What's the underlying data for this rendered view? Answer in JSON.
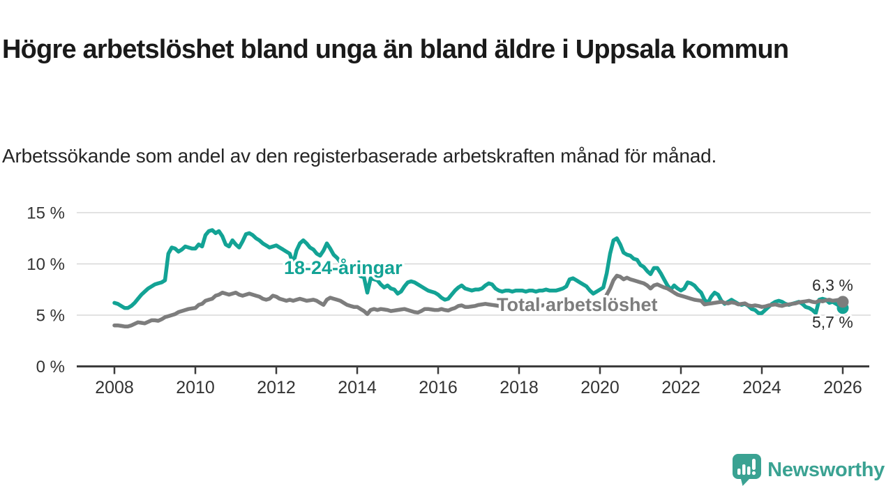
{
  "header": {
    "title": "Högre arbetslöshet bland unga än bland äldre i Uppsala kommun",
    "subtitle": "Arbetssökande som andel av den registerbaserade arbetskraften månad för månad."
  },
  "chart_data": {
    "type": "line",
    "title": "Högre arbetslöshet bland unga än bland äldre i Uppsala kommun",
    "subtitle": "Arbetssökande som andel av den registerbaserade arbetskraften månad för månad.",
    "grid": "horizontal",
    "legend_position": "inline-labels",
    "x_start_year": 2008,
    "x_step_months": 1,
    "x_tick_years": [
      2008,
      2010,
      2012,
      2014,
      2016,
      2018,
      2020,
      2022,
      2024,
      2026
    ],
    "x_tick_labels": [
      "2008",
      "2010",
      "2012",
      "2014",
      "2016",
      "2018",
      "2020",
      "2022",
      "2024",
      "2026"
    ],
    "y_ticks": [
      0,
      5,
      10,
      15
    ],
    "y_tick_labels": [
      "0 %",
      "5 %",
      "10 %",
      "15 %"
    ],
    "ylim": [
      0,
      16.3
    ],
    "xlim": [
      2007.05,
      2026.65
    ],
    "axis_color": "#3c3c3c",
    "grid_color": "#d8d8d8",
    "series": [
      {
        "name": "18-24-åringar",
        "color": "#13a395",
        "end_label": "5,7 %",
        "end_value": 5.7,
        "values": [
          6.2,
          6.1,
          5.9,
          5.7,
          5.7,
          5.9,
          6.2,
          6.6,
          7.0,
          7.3,
          7.6,
          7.8,
          8.0,
          8.1,
          8.2,
          8.4,
          11.0,
          11.6,
          11.5,
          11.2,
          11.4,
          11.7,
          11.6,
          11.5,
          11.5,
          11.9,
          11.7,
          12.8,
          13.2,
          13.3,
          13.0,
          13.2,
          12.7,
          11.9,
          11.7,
          12.3,
          11.9,
          11.6,
          12.2,
          12.9,
          13.0,
          12.8,
          12.5,
          12.3,
          12.0,
          11.8,
          11.6,
          11.7,
          11.8,
          11.6,
          11.4,
          11.2,
          11.0,
          10.0,
          11.3,
          12.0,
          12.3,
          12.0,
          11.6,
          11.4,
          11.0,
          10.8,
          11.3,
          12.0,
          11.5,
          10.9,
          10.6,
          10.2,
          9.9,
          9.6,
          9.8,
          9.5,
          9.2,
          8.8,
          8.7,
          7.2,
          8.6,
          8.5,
          8.4,
          8.0,
          7.7,
          7.9,
          7.6,
          7.5,
          7.1,
          7.3,
          7.8,
          8.2,
          8.3,
          8.2,
          8.0,
          7.8,
          7.6,
          7.4,
          7.3,
          7.2,
          7.0,
          6.7,
          6.5,
          6.6,
          7.0,
          7.4,
          7.7,
          7.9,
          7.6,
          7.5,
          7.4,
          7.5,
          7.5,
          7.6,
          7.9,
          8.1,
          8.0,
          7.6,
          7.4,
          7.3,
          7.4,
          7.4,
          7.3,
          7.4,
          7.4,
          7.4,
          7.3,
          7.4,
          7.4,
          7.3,
          7.4,
          7.4,
          7.5,
          7.4,
          7.4,
          7.4,
          7.5,
          7.6,
          7.8,
          8.5,
          8.6,
          8.4,
          8.2,
          8.0,
          7.8,
          7.4,
          7.1,
          7.3,
          7.5,
          7.7,
          9.1,
          11.0,
          12.3,
          12.5,
          11.9,
          11.1,
          10.9,
          10.8,
          10.5,
          10.4,
          9.9,
          9.7,
          9.3,
          9.0,
          9.6,
          9.6,
          9.1,
          8.5,
          7.9,
          7.5,
          7.9,
          7.6,
          7.4,
          7.6,
          8.2,
          8.1,
          7.9,
          7.5,
          7.2,
          6.5,
          6.2,
          6.8,
          7.2,
          7.0,
          6.4,
          6.1,
          6.3,
          6.5,
          6.3,
          6.1,
          6.0,
          6.1,
          5.9,
          5.6,
          5.5,
          5.2,
          5.2,
          5.5,
          5.8,
          6.1,
          6.3,
          6.4,
          6.3,
          6.1,
          6.0,
          6.1,
          6.2,
          6.3,
          6.1,
          5.8,
          5.7,
          5.5,
          5.2,
          6.5,
          6.6,
          6.5,
          6.2,
          6.3,
          6.1,
          5.9,
          5.7
        ]
      },
      {
        "name": "Total arbetslöshet",
        "color": "#7d7d7d",
        "end_label": "6,3 %",
        "end_value": 6.3,
        "values": [
          4.0,
          4.0,
          3.95,
          3.9,
          3.9,
          4.0,
          4.15,
          4.3,
          4.25,
          4.2,
          4.35,
          4.5,
          4.5,
          4.45,
          4.6,
          4.8,
          4.9,
          5.0,
          5.1,
          5.3,
          5.4,
          5.5,
          5.6,
          5.65,
          5.7,
          6.0,
          6.1,
          6.4,
          6.5,
          6.6,
          6.9,
          7.0,
          7.2,
          7.1,
          7.0,
          7.1,
          7.2,
          7.0,
          6.9,
          7.0,
          7.1,
          7.0,
          6.9,
          6.8,
          6.6,
          6.5,
          6.6,
          6.9,
          6.8,
          6.6,
          6.5,
          6.4,
          6.5,
          6.4,
          6.5,
          6.6,
          6.5,
          6.4,
          6.45,
          6.5,
          6.4,
          6.2,
          6.0,
          6.5,
          6.7,
          6.6,
          6.5,
          6.4,
          6.2,
          6.0,
          5.9,
          5.8,
          5.8,
          5.6,
          5.4,
          5.1,
          5.5,
          5.6,
          5.5,
          5.6,
          5.55,
          5.5,
          5.4,
          5.45,
          5.5,
          5.55,
          5.6,
          5.5,
          5.4,
          5.3,
          5.25,
          5.4,
          5.6,
          5.6,
          5.55,
          5.5,
          5.5,
          5.6,
          5.5,
          5.45,
          5.6,
          5.7,
          5.9,
          5.95,
          5.8,
          5.8,
          5.85,
          5.9,
          6.0,
          6.05,
          6.1,
          6.05,
          6.0,
          5.95,
          5.9,
          5.85,
          5.9,
          5.95,
          5.9,
          5.95,
          6.0,
          5.95,
          5.9,
          5.95,
          5.9,
          5.85,
          5.9,
          5.95,
          6.0,
          5.95,
          5.9,
          5.95,
          6.0,
          6.05,
          6.1,
          6.15,
          6.1,
          6.05,
          6.0,
          5.95,
          6.0,
          6.05,
          6.0,
          6.1,
          6.2,
          6.3,
          7.0,
          7.6,
          8.4,
          8.85,
          8.75,
          8.5,
          8.65,
          8.5,
          8.4,
          8.3,
          8.2,
          8.1,
          7.9,
          7.6,
          7.9,
          8.0,
          7.85,
          7.7,
          7.6,
          7.4,
          7.2,
          7.0,
          6.9,
          6.8,
          6.7,
          6.6,
          6.5,
          6.45,
          6.4,
          6.05,
          6.1,
          6.15,
          6.2,
          6.25,
          6.3,
          6.2,
          6.15,
          6.25,
          6.2,
          6.05,
          6.1,
          6.15,
          5.95,
          5.9,
          5.95,
          5.9,
          5.8,
          5.85,
          5.95,
          6.0,
          6.05,
          5.95,
          5.9,
          6.0,
          6.05,
          6.1,
          6.15,
          6.25,
          6.3,
          6.35,
          6.4,
          6.3,
          6.25,
          6.4,
          6.35,
          6.45,
          6.5,
          6.4,
          6.45,
          6.5,
          6.3
        ]
      }
    ]
  },
  "footer": {
    "brand": "Newsworthy",
    "brand_color": "#3aa292"
  }
}
